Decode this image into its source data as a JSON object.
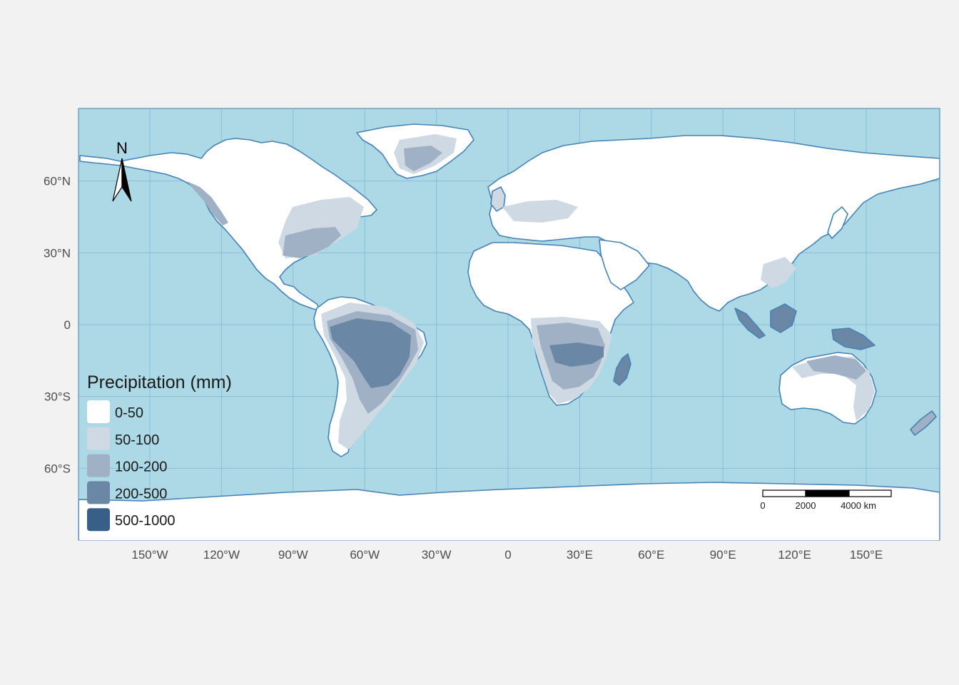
{
  "map": {
    "ocean_color": "#add8e6",
    "land_color": "#ffffff",
    "coast_color": "#4682b4",
    "graticule_color": "#7fb2d8"
  },
  "axes": {
    "x_ticks": [
      {
        "lon": -150,
        "label": "150°W"
      },
      {
        "lon": -120,
        "label": "120°W"
      },
      {
        "lon": -90,
        "label": "90°W"
      },
      {
        "lon": -60,
        "label": "60°W"
      },
      {
        "lon": -30,
        "label": "30°W"
      },
      {
        "lon": 0,
        "label": "0"
      },
      {
        "lon": 30,
        "label": "30°E"
      },
      {
        "lon": 60,
        "label": "60°E"
      },
      {
        "lon": 90,
        "label": "90°E"
      },
      {
        "lon": 120,
        "label": "120°E"
      },
      {
        "lon": 150,
        "label": "150°E"
      }
    ],
    "y_ticks": [
      {
        "lat": 60,
        "label": "60°N"
      },
      {
        "lat": 30,
        "label": "30°N"
      },
      {
        "lat": 0,
        "label": "0"
      },
      {
        "lat": -30,
        "label": "30°S"
      },
      {
        "lat": -60,
        "label": "60°S"
      }
    ]
  },
  "legend": {
    "title": "Precipitation (mm)",
    "items": [
      {
        "label": "0-50",
        "color": "#ffffff"
      },
      {
        "label": "50-100",
        "color": "#cfd9e3"
      },
      {
        "label": "100-200",
        "color": "#a0b1c5"
      },
      {
        "label": "200-500",
        "color": "#6a87a6"
      },
      {
        "label": "500-1000",
        "color": "#375f87"
      }
    ]
  },
  "scale_bar": {
    "labels": [
      "0",
      "2000",
      "4000 km"
    ]
  },
  "north_arrow": {
    "label": "N"
  }
}
